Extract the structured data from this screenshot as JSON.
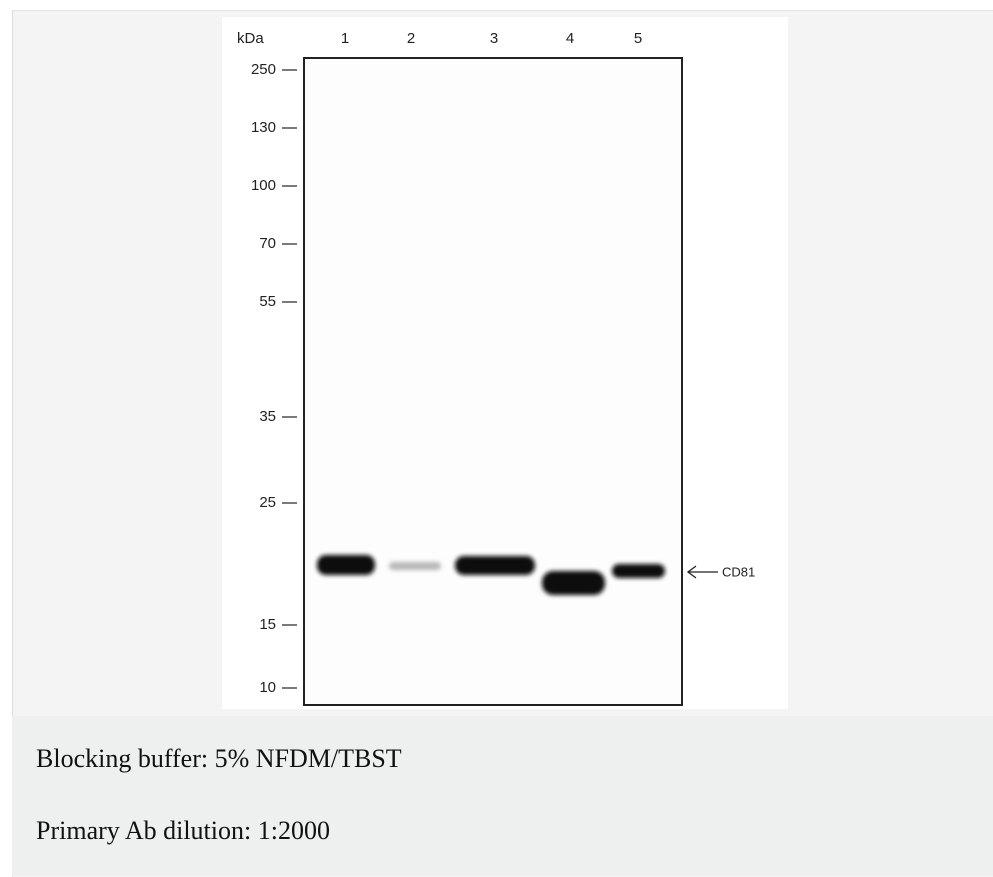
{
  "blot": {
    "axis_unit": "kDa",
    "lanes": [
      "1",
      "2",
      "3",
      "4",
      "5"
    ],
    "markers": [
      "250",
      "130",
      "100",
      "70",
      "55",
      "35",
      "25",
      "15",
      "10"
    ],
    "band_label": "CD81"
  },
  "captions": [
    "Blocking buffer: 5% NFDM/TBST",
    "Primary Ab dilution: 1:2000"
  ]
}
